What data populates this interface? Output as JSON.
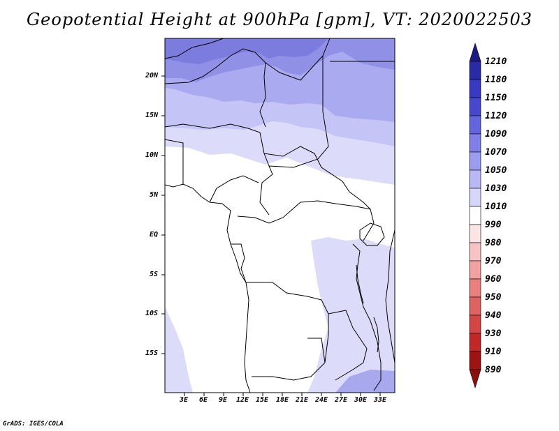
{
  "title": "Geopotential Height at 900hPa [gpm], VT: 2020022503",
  "credit": "GrADS: IGES/COLA",
  "map": {
    "lat_labels": [
      "20N",
      "15N",
      "10N",
      "5N",
      "EQ",
      "5S",
      "10S",
      "15S"
    ],
    "lon_labels": [
      "3E",
      "6E",
      "9E",
      "12E",
      "15E",
      "18E",
      "21E",
      "24E",
      "27E",
      "30E",
      "33E"
    ]
  },
  "colorbar": {
    "levels": [
      {
        "label": "1210",
        "color": "#1f1f8c"
      },
      {
        "label": "1180",
        "color": "#2a2aa5"
      },
      {
        "label": "1150",
        "color": "#3838c0"
      },
      {
        "label": "1120",
        "color": "#4848cf"
      },
      {
        "label": "1090",
        "color": "#6464dc"
      },
      {
        "label": "1070",
        "color": "#8080e6"
      },
      {
        "label": "1050",
        "color": "#9c9cee"
      },
      {
        "label": "1030",
        "color": "#b8b8f4"
      },
      {
        "label": "1010",
        "color": "#d6d6fa"
      },
      {
        "label": "990",
        "color": "#ffffff"
      },
      {
        "label": "980",
        "color": "#fbe4e4"
      },
      {
        "label": "970",
        "color": "#f6c4c4"
      },
      {
        "label": "960",
        "color": "#f0a2a2"
      },
      {
        "label": "950",
        "color": "#e88080"
      },
      {
        "label": "940",
        "color": "#dd6262"
      },
      {
        "label": "930",
        "color": "#d44646"
      },
      {
        "label": "910",
        "color": "#c02828"
      },
      {
        "label": "890",
        "color": "#9c1414"
      }
    ],
    "top_color": "#1a1a80",
    "bottom_color": "#8a1010"
  }
}
